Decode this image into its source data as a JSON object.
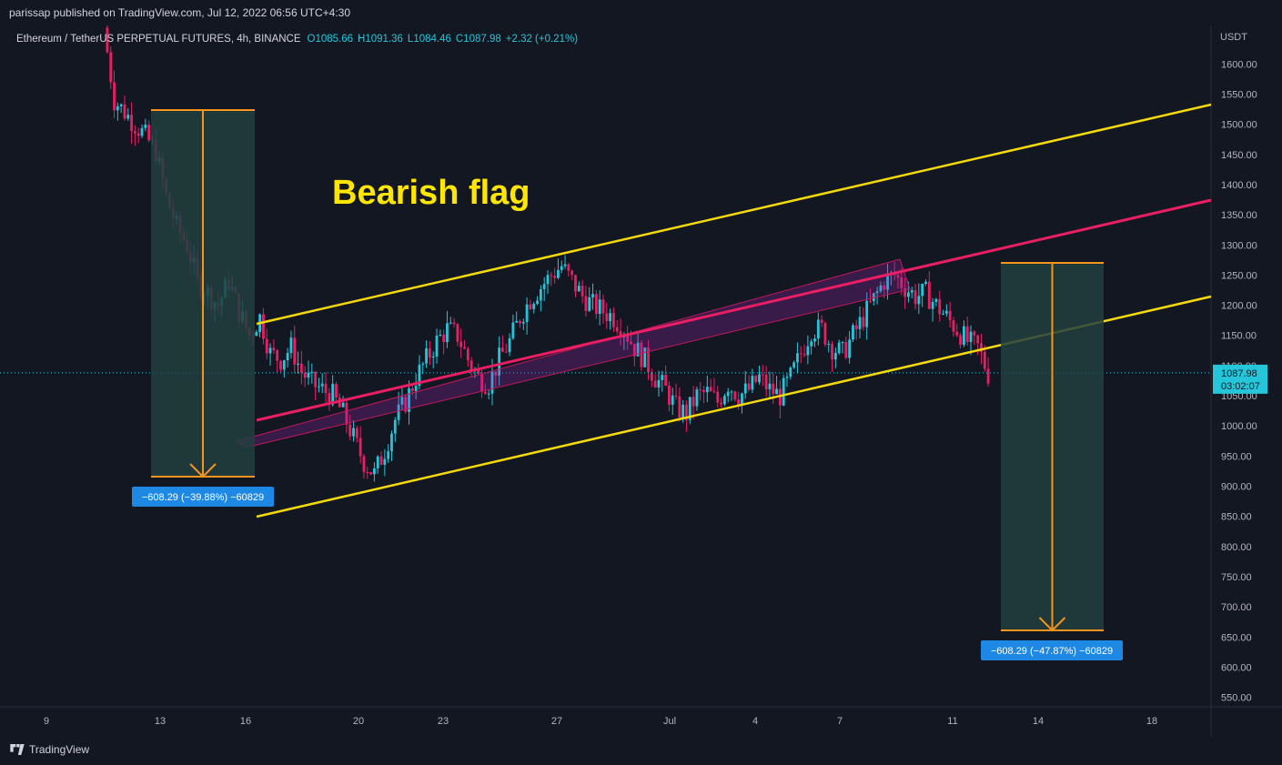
{
  "header": {
    "published_text": "parissap published on TradingView.com, Jul 12, 2022 06:56 UTC+4:30"
  },
  "footer": {
    "brand": "TradingView"
  },
  "colors": {
    "background": "#131722",
    "up_candle": "#26c6da",
    "down_candle": "#e91e63",
    "channel_line": "#f5d90a",
    "median_line": "#e91e63",
    "projection_box": "#22403f",
    "projection_arrow": "#f7941d",
    "label_blue": "#1e88e5",
    "title_yellow": "#ffe600"
  },
  "chart_data": {
    "type": "candlestick",
    "symbol_line": {
      "name": "Ethereum / TetherUS PERPETUAL FUTURES, 4h, BINANCE",
      "open": "O1085.66",
      "high": "H1091.36",
      "low": "L1084.46",
      "close": "C1087.98",
      "change": "+2.32 (+0.21%)"
    },
    "title": "Bearish flag",
    "currency": "USDT",
    "ylim": [
      525,
      1650
    ],
    "y_ticks": [
      "1600.00",
      "1550.00",
      "1500.00",
      "1450.00",
      "1400.00",
      "1350.00",
      "1300.00",
      "1250.00",
      "1200.00",
      "1150.00",
      "1100.00",
      "1050.00",
      "1000.00",
      "950.00",
      "900.00",
      "850.00",
      "800.00",
      "750.00",
      "700.00",
      "650.00",
      "600.00",
      "550.00"
    ],
    "x_ticks": [
      "9",
      "13",
      "16",
      "20",
      "23",
      "27",
      "Jul",
      "4",
      "7",
      "11",
      "14",
      "18"
    ],
    "last_price": {
      "value": "1087.98",
      "countdown": "03:02:07"
    },
    "measure_labels": [
      "−608.29 (−39.88%) −60829",
      "−608.29 (−47.87%) −60829"
    ],
    "price_path": [
      [
        1660,
        1530
      ],
      [
        1540,
        1500
      ],
      [
        1520,
        1480
      ],
      [
        1500,
        1470
      ],
      [
        1480,
        1460
      ],
      [
        1455,
        1440
      ],
      [
        1380,
        1350
      ],
      [
        1330,
        1290
      ],
      [
        1300,
        1260
      ],
      [
        1240,
        1210
      ],
      [
        1220,
        1195
      ],
      [
        1200,
        1230
      ],
      [
        1240,
        1210
      ],
      [
        1190,
        1140
      ],
      [
        1150,
        1170
      ],
      [
        1180,
        1150
      ],
      [
        1120,
        1090
      ],
      [
        1110,
        1120
      ],
      [
        1130,
        1100
      ],
      [
        1090,
        1080
      ],
      [
        1070,
        1060
      ],
      [
        1060,
        1075
      ],
      [
        1050,
        1040
      ],
      [
        1020,
        990
      ],
      [
        980,
        960
      ],
      [
        940,
        920
      ],
      [
        920,
        950
      ],
      [
        960,
        1000
      ],
      [
        1010,
        1030
      ],
      [
        1040,
        1070
      ],
      [
        1080,
        1100
      ],
      [
        1110,
        1130
      ],
      [
        1140,
        1150
      ],
      [
        1160,
        1145
      ],
      [
        1150,
        1120
      ],
      [
        1110,
        1090
      ],
      [
        1080,
        1060
      ],
      [
        1070,
        1100
      ],
      [
        1110,
        1130
      ],
      [
        1140,
        1170
      ],
      [
        1180,
        1200
      ],
      [
        1210,
        1230
      ],
      [
        1230,
        1250
      ],
      [
        1250,
        1260
      ],
      [
        1265,
        1245
      ],
      [
        1240,
        1220
      ],
      [
        1215,
        1200
      ],
      [
        1200,
        1190
      ],
      [
        1190,
        1180
      ],
      [
        1180,
        1170
      ],
      [
        1160,
        1130
      ],
      [
        1130,
        1110
      ],
      [
        1110,
        1090
      ],
      [
        1080,
        1060
      ],
      [
        1060,
        1040
      ],
      [
        1030,
        1010
      ],
      [
        1020,
        1040
      ],
      [
        1050,
        1060
      ],
      [
        1055,
        1045
      ],
      [
        1040,
        1060
      ],
      [
        1070,
        1050
      ],
      [
        1050,
        1040
      ],
      [
        1060,
        1070
      ],
      [
        1080,
        1060
      ],
      [
        1060,
        1050
      ],
      [
        1050,
        1070
      ],
      [
        1080,
        1110
      ],
      [
        1120,
        1150
      ],
      [
        1160,
        1170
      ],
      [
        1160,
        1140
      ],
      [
        1130,
        1120
      ],
      [
        1120,
        1140
      ],
      [
        1150,
        1170
      ],
      [
        1180,
        1200
      ],
      [
        1210,
        1230
      ],
      [
        1240,
        1255
      ],
      [
        1250,
        1230
      ],
      [
        1230,
        1210
      ],
      [
        1215,
        1220
      ],
      [
        1220,
        1205
      ],
      [
        1200,
        1180
      ],
      [
        1180,
        1160
      ],
      [
        1160,
        1140
      ],
      [
        1140,
        1130
      ],
      [
        1130,
        1085
      ],
      [
        1086,
        1088
      ]
    ]
  }
}
